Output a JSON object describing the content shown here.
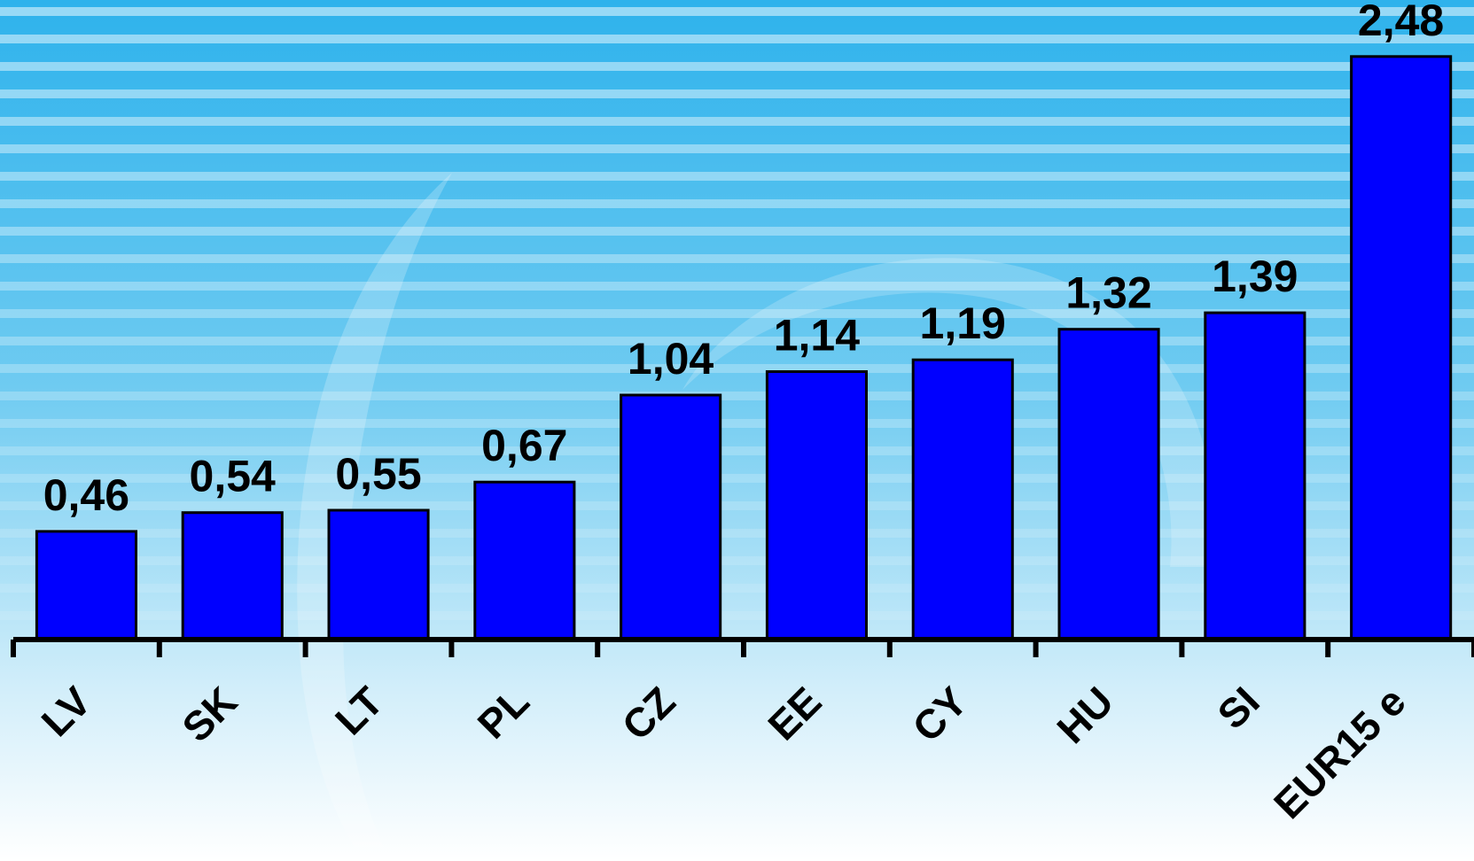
{
  "chart_data": {
    "type": "bar",
    "title": "",
    "xlabel": "",
    "ylabel": "",
    "categories": [
      "LV",
      "SK",
      "LT",
      "PL",
      "CZ",
      "EE",
      "CY",
      "HU",
      "SI",
      "EUR15 e"
    ],
    "values": [
      0.46,
      0.54,
      0.55,
      0.67,
      1.04,
      1.14,
      1.19,
      1.32,
      1.39,
      2.48
    ],
    "value_labels": [
      "0,46",
      "0,54",
      "0,55",
      "0,67",
      "1,04",
      "1,14",
      "1,19",
      "1,32",
      "1,39",
      "2,48"
    ],
    "ylim": [
      0,
      2.6
    ],
    "grid": false,
    "legend": "none",
    "colors": {
      "bar_fill": "#0000FF",
      "bar_stroke": "#000000",
      "axis": "#000000",
      "label_text": "#000000",
      "background_top": "#2EB2EC",
      "background_bottom": "#FFFFFF",
      "stripe": "#FFFFFF"
    }
  }
}
